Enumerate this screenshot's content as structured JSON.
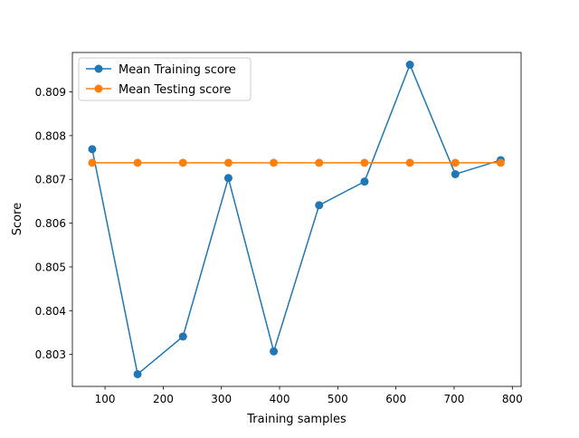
{
  "chart_data": {
    "type": "line",
    "xlabel": "Training samples",
    "ylabel": "Score",
    "xlim": [
      43.9,
      815.1
    ],
    "ylim": [
      0.80227,
      0.8099
    ],
    "x_ticks": [
      100,
      200,
      300,
      400,
      500,
      600,
      700,
      800
    ],
    "y_ticks": [
      0.803,
      0.804,
      0.805,
      0.806,
      0.807,
      0.808,
      0.809
    ],
    "grid": false,
    "legend_position": "top-left",
    "x": [
      78,
      156,
      234,
      312,
      390,
      468,
      546,
      624,
      702,
      780
    ],
    "series": [
      {
        "name": "Mean Training score",
        "color": "#1f77b4",
        "marker": "circle",
        "values": [
          0.80769,
          0.80255,
          0.80341,
          0.80703,
          0.80307,
          0.80641,
          0.80695,
          0.80962,
          0.80712,
          0.80744
        ]
      },
      {
        "name": "Mean Testing score",
        "color": "#ff7f0e",
        "marker": "circle",
        "values": [
          0.80738,
          0.80738,
          0.80738,
          0.80738,
          0.80738,
          0.80738,
          0.80738,
          0.80738,
          0.80738,
          0.80738
        ]
      }
    ]
  }
}
